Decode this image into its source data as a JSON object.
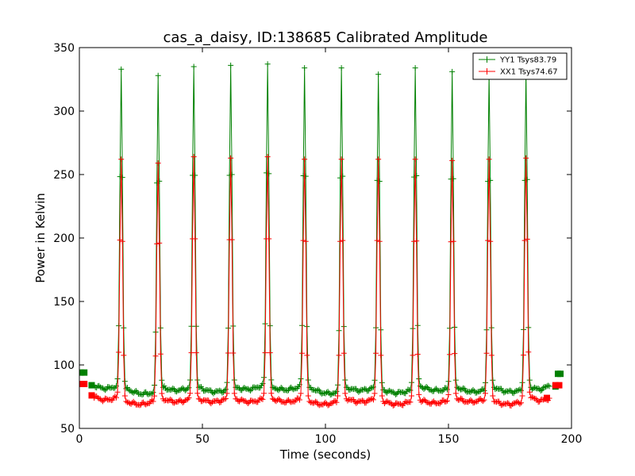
{
  "chart_data": {
    "type": "line",
    "title": "cas_a_daisy, ID:138685 Calibrated Amplitude",
    "xlabel": "Time (seconds)",
    "ylabel": "Power in Kelvin",
    "xlim": [
      0,
      200
    ],
    "ylim": [
      50,
      350
    ],
    "xticks": [
      0,
      50,
      100,
      150,
      200
    ],
    "yticks": [
      50,
      100,
      150,
      200,
      250,
      300,
      350
    ],
    "grid": false,
    "legend_position": "top-right",
    "marker": "+",
    "pulse_times": [
      17,
      32,
      46.5,
      61.5,
      76.5,
      91.5,
      106.5,
      121.5,
      136.5,
      151.5,
      166.5,
      181.5
    ],
    "series": [
      {
        "name": "YY1 Tsys83.79",
        "color": "#008000",
        "peaks": [
          333,
          328,
          335,
          336,
          337,
          334,
          334,
          329,
          334,
          331,
          329,
          330
        ],
        "baseline_segments": [
          {
            "from": 6,
            "to": 14.5,
            "start": 84,
            "end": 83
          },
          {
            "from": 19.5,
            "to": 29.5,
            "start": 81,
            "end": 78
          },
          {
            "from": 34.5,
            "to": 44.5,
            "start": 82,
            "end": 82
          },
          {
            "from": 49,
            "to": 59.5,
            "start": 82,
            "end": 80
          },
          {
            "from": 64,
            "to": 74.5,
            "start": 82,
            "end": 84
          },
          {
            "from": 79,
            "to": 89.5,
            "start": 82,
            "end": 83
          },
          {
            "from": 94,
            "to": 104.5,
            "start": 82,
            "end": 78
          },
          {
            "from": 109,
            "to": 119.5,
            "start": 82,
            "end": 82
          },
          {
            "from": 124,
            "to": 134.5,
            "start": 80,
            "end": 80
          },
          {
            "from": 139,
            "to": 149.5,
            "start": 83,
            "end": 81
          },
          {
            "from": 154,
            "to": 164.5,
            "start": 82,
            "end": 80
          },
          {
            "from": 169,
            "to": 179.5,
            "start": 82,
            "end": 80
          },
          {
            "from": 184,
            "to": 191,
            "start": 82,
            "end": 84
          }
        ],
        "square_points": [
          [
            0.5,
            94
          ],
          [
            2,
            94
          ],
          [
            5,
            84
          ],
          [
            193.5,
            83
          ],
          [
            194.5,
            93
          ],
          [
            195.5,
            93
          ]
        ]
      },
      {
        "name": "XX1 Tsys74.67",
        "color": "#ff0000",
        "peaks": [
          262,
          259,
          264,
          263,
          264,
          262,
          262,
          262,
          262,
          261,
          262,
          263
        ],
        "baseline_segments": [
          {
            "from": 6,
            "to": 14.5,
            "start": 75,
            "end": 74
          },
          {
            "from": 19.5,
            "to": 29.5,
            "start": 71,
            "end": 71
          },
          {
            "from": 34.5,
            "to": 44.5,
            "start": 73,
            "end": 73
          },
          {
            "from": 49,
            "to": 59.5,
            "start": 73,
            "end": 73
          },
          {
            "from": 64,
            "to": 74.5,
            "start": 73,
            "end": 73
          },
          {
            "from": 79,
            "to": 89.5,
            "start": 73,
            "end": 73
          },
          {
            "from": 94,
            "to": 104.5,
            "start": 71,
            "end": 71
          },
          {
            "from": 109,
            "to": 119.5,
            "start": 73,
            "end": 73
          },
          {
            "from": 124,
            "to": 134.5,
            "start": 71,
            "end": 71
          },
          {
            "from": 139,
            "to": 149.5,
            "start": 72,
            "end": 72
          },
          {
            "from": 154,
            "to": 164.5,
            "start": 73,
            "end": 73
          },
          {
            "from": 169,
            "to": 179.5,
            "start": 71,
            "end": 71
          },
          {
            "from": 184,
            "to": 191,
            "start": 74,
            "end": 74
          }
        ],
        "square_points": [
          [
            0.5,
            85
          ],
          [
            2,
            85
          ],
          [
            5,
            76
          ],
          [
            190,
            74
          ],
          [
            193.5,
            84
          ],
          [
            195,
            84
          ]
        ]
      }
    ]
  }
}
